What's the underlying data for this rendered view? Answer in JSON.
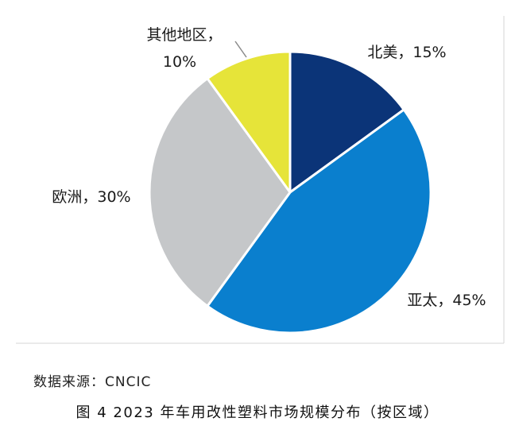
{
  "chart_data": {
    "type": "pie",
    "title": "",
    "start_angle_deg": 0,
    "direction": "clockwise",
    "slices": [
      {
        "label": "北美",
        "value": 15,
        "display": "15%",
        "color": "#0b3478"
      },
      {
        "label": "亚太",
        "value": 45,
        "display": "45%",
        "color": "#0a7fce"
      },
      {
        "label": "欧洲",
        "value": 30,
        "display": "30%",
        "color": "#c5c7c9"
      },
      {
        "label": "其他地区",
        "value": 10,
        "display": "10%",
        "color": "#e6e439"
      }
    ],
    "separator": "，"
  },
  "source_note": "数据来源：CNCIC",
  "caption": "图 4  2023 年车用改性塑料市场规模分布（按区域）"
}
